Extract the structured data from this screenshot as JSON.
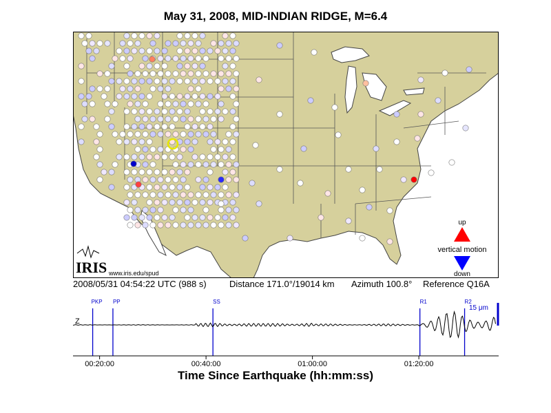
{
  "title": "May 31, 2008, MID-INDIAN RIDGE, M=6.4",
  "logo": {
    "text": "IRIS",
    "url": "www.iris.edu/spud"
  },
  "legend": {
    "up": "up",
    "label": "vertical motion",
    "down": "down",
    "up_color": "#ff0000",
    "down_color": "#0000ff"
  },
  "info": {
    "timestamp": "2008/05/31 04:54:22 UTC (988 s)",
    "distance": "Distance 171.0°/19014 km",
    "azimuth": "Azimuth 100.8°",
    "reference": "Reference Q16A"
  },
  "trace": {
    "component": "Z",
    "scale_label": "15 μm",
    "xlabel": "Time Since Earthquake (hh:mm:ss)",
    "ticks": [
      "00:20:00",
      "00:40:00",
      "01:00:00",
      "01:20:00"
    ],
    "phases": [
      {
        "label": "PKP",
        "minutes": 18.7
      },
      {
        "label": "PP",
        "minutes": 22.5
      },
      {
        "label": "SS",
        "minutes": 41.3
      },
      {
        "label": "R1",
        "minutes": 80.2
      },
      {
        "label": "R2",
        "minutes": 88.6
      }
    ],
    "time_window_minutes": [
      15,
      95
    ]
  },
  "colors": {
    "land": "#d6d09c",
    "water": "#ffffff",
    "station_neutral": "#ffffff",
    "station_up": "#ff0000",
    "station_down": "#0000ff",
    "phase_line": "#0000cc"
  }
}
